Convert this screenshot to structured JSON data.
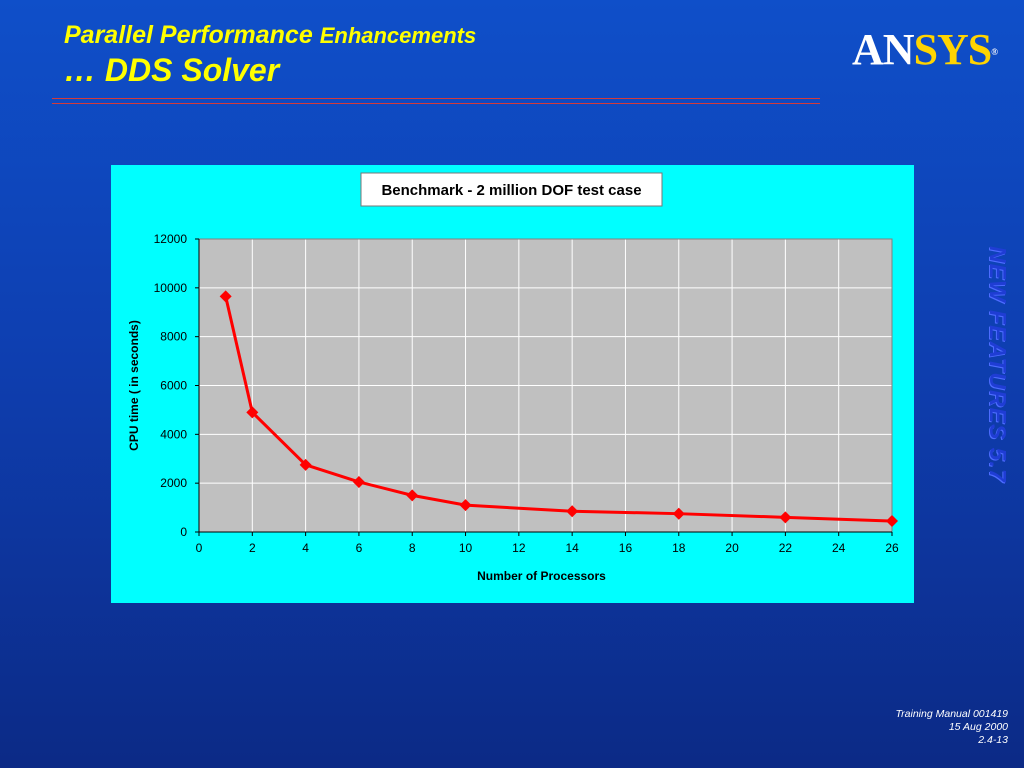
{
  "slide": {
    "title_main": "Parallel Performance",
    "title_sub": "Enhancements",
    "title_line2": "… DDS Solver",
    "logo_an": "AN",
    "logo_sys": "SYS",
    "logo_reg": "®",
    "side_banner": "NEW FEATURES 5.7",
    "footer": {
      "line1": "Training Manual 001419",
      "line2": "15 Aug 2000",
      "line3": "2.4-13"
    }
  },
  "chart_data": {
    "type": "line",
    "title": "Benchmark - 2 million DOF test case",
    "xlabel": "Number of Processors",
    "ylabel": "CPU time ( in seconds)",
    "xlim": [
      0,
      26
    ],
    "ylim": [
      0,
      12000
    ],
    "xticks": [
      0,
      2,
      4,
      6,
      8,
      10,
      12,
      14,
      16,
      18,
      20,
      22,
      24,
      26
    ],
    "yticks": [
      0,
      2000,
      4000,
      6000,
      8000,
      10000,
      12000
    ],
    "grid": true,
    "legend": "none",
    "colors": {
      "line": "#ff0000",
      "plot_bg": "#c0c0c0",
      "chart_bg": "#00ffff",
      "grid": "#ffffff"
    },
    "series": [
      {
        "x": [
          1,
          2,
          4,
          6,
          8,
          10,
          14,
          18,
          22,
          26
        ],
        "y": [
          9650,
          4900,
          2750,
          2050,
          1500,
          1100,
          850,
          750,
          600,
          450
        ]
      }
    ]
  }
}
